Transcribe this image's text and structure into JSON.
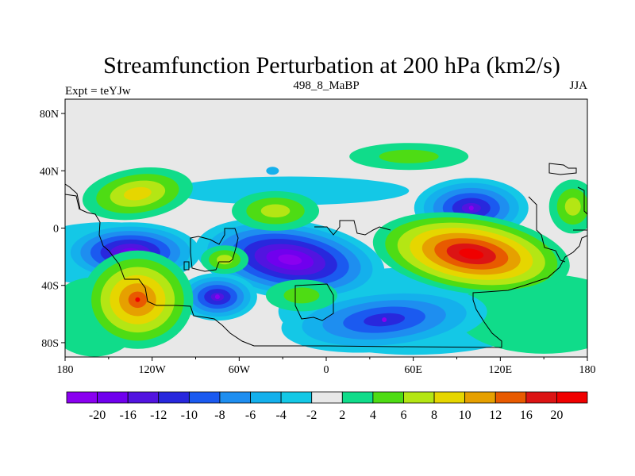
{
  "chart_data": {
    "type": "contour-map",
    "title": "Streamfunction Perturbation at 200 hPa (km2/s)",
    "left_subtitle": "Expt = teYJw",
    "center_subtitle": "498_8_MaBP",
    "right_subtitle": "JJA",
    "x_range": [
      -180,
      180
    ],
    "y_range": [
      -90,
      90
    ],
    "x_ticks": [
      {
        "value": -180,
        "label": "180"
      },
      {
        "value": -120,
        "label": "120W"
      },
      {
        "value": -60,
        "label": "60W"
      },
      {
        "value": 0,
        "label": "0"
      },
      {
        "value": 60,
        "label": "60E"
      },
      {
        "value": 120,
        "label": "120E"
      },
      {
        "value": 180,
        "label": "180"
      }
    ],
    "y_ticks": [
      {
        "value": 80,
        "label": "80N"
      },
      {
        "value": 40,
        "label": "40N"
      },
      {
        "value": 0,
        "label": "0"
      },
      {
        "value": -40,
        "label": "40S"
      },
      {
        "value": -80,
        "label": "80S"
      }
    ],
    "colorbar": {
      "levels": [
        "-20",
        "-16",
        "-12",
        "-10",
        "-8",
        "-6",
        "-4",
        "-2",
        "2",
        "4",
        "6",
        "8",
        "10",
        "12",
        "16",
        "20"
      ],
      "colors": [
        "#8a00f0",
        "#7000ee",
        "#5214e0",
        "#2828dd",
        "#1b5af0",
        "#1e8ef0",
        "#14b0ec",
        "#14c8e6",
        "#e8e8e8",
        "#10dc8a",
        "#4edc14",
        "#b4e614",
        "#e6d600",
        "#e6a000",
        "#e85a00",
        "#dc1414",
        "#f00000"
      ]
    },
    "features": [
      {
        "kind": "min",
        "lon": -135,
        "lat": -17,
        "level": -16
      },
      {
        "kind": "min",
        "lon": -25,
        "lat": -22,
        "level": -20
      },
      {
        "kind": "min",
        "lon": 100,
        "lat": 14,
        "level": -12
      },
      {
        "kind": "min",
        "lon": -75,
        "lat": -48,
        "level": -12
      },
      {
        "kind": "min",
        "lon": 40,
        "lat": -64,
        "level": -10
      },
      {
        "kind": "max",
        "lon": 100,
        "lat": -18,
        "level": 20
      },
      {
        "kind": "max",
        "lon": -130,
        "lat": -50,
        "level": 12
      },
      {
        "kind": "max",
        "lon": -130,
        "lat": 24,
        "level": 8
      },
      {
        "kind": "max",
        "lon": -35,
        "lat": 12,
        "level": 6
      },
      {
        "kind": "max",
        "lon": 57,
        "lat": 50,
        "level": 4
      },
      {
        "kind": "max",
        "lon": 170,
        "lat": 15,
        "level": 6
      },
      {
        "kind": "max",
        "lon": -70,
        "lat": -22,
        "level": 6
      },
      {
        "kind": "max",
        "lon": -17,
        "lat": -47,
        "level": 4
      }
    ]
  }
}
